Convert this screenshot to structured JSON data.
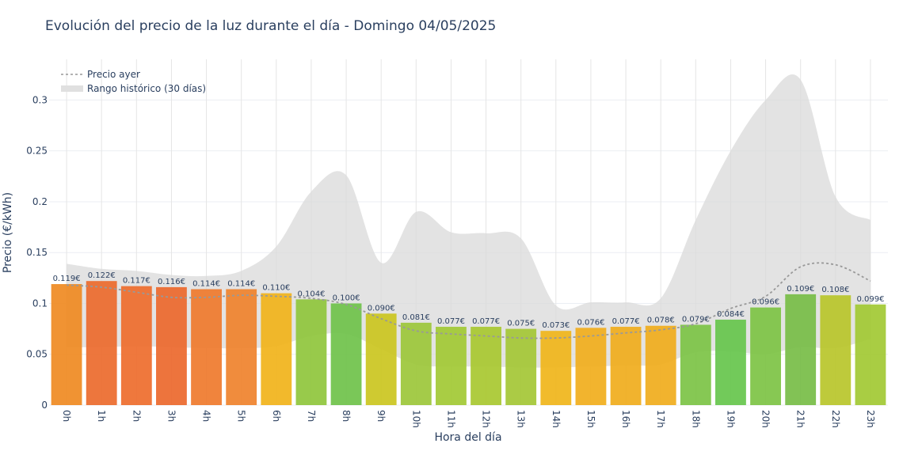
{
  "chart_data": {
    "type": "bar",
    "title": "Evolución del precio de la luz durante el día - Domingo 04/05/2025",
    "xlabel": "Hora del día",
    "ylabel": "Precio (€/kWh)",
    "ylim": [
      0,
      0.34
    ],
    "yticks": [
      0,
      0.05,
      0.1,
      0.15,
      0.2,
      0.25,
      0.3
    ],
    "ytick_labels": [
      "0",
      "0.05",
      "0.1",
      "0.15",
      "0.2",
      "0.25",
      "0.3"
    ],
    "grid": true,
    "legend_position": "top-left",
    "categories": [
      "0h",
      "1h",
      "2h",
      "3h",
      "4h",
      "5h",
      "6h",
      "7h",
      "8h",
      "9h",
      "10h",
      "11h",
      "12h",
      "13h",
      "14h",
      "15h",
      "16h",
      "17h",
      "18h",
      "19h",
      "20h",
      "21h",
      "22h",
      "23h"
    ],
    "series": [
      {
        "kind": "bar",
        "values": [
          0.119,
          0.122,
          0.117,
          0.116,
          0.114,
          0.114,
          0.11,
          0.104,
          0.1,
          0.09,
          0.081,
          0.077,
          0.077,
          0.075,
          0.073,
          0.076,
          0.077,
          0.078,
          0.079,
          0.084,
          0.096,
          0.109,
          0.108,
          0.099
        ],
        "labels": [
          "0.119€",
          "0.122€",
          "0.117€",
          "0.116€",
          "0.114€",
          "0.114€",
          "0.110€",
          "0.104€",
          "0.100€",
          "0.090€",
          "0.081€",
          "0.077€",
          "0.077€",
          "0.075€",
          "0.073€",
          "0.076€",
          "0.077€",
          "0.078€",
          "0.079€",
          "0.084€",
          "0.096€",
          "0.109€",
          "0.108€",
          "0.099€"
        ],
        "colors": [
          "#ef8a22",
          "#ec6a2c",
          "#ee6d2c",
          "#ec682c",
          "#ef7a2d",
          "#ef822c",
          "#f1b31a",
          "#8fc53c",
          "#6fc24a",
          "#cbc51f",
          "#9cc73a",
          "#a2c934",
          "#a8c830",
          "#a4c735",
          "#f0b51a",
          "#f1ae1c",
          "#f0ad1c",
          "#f0ad1c",
          "#7cc345",
          "#66c64c",
          "#7dc344",
          "#77bd47",
          "#b8c52a",
          "#a2c933"
        ]
      },
      {
        "name": "Precio ayer",
        "kind": "line",
        "color": "#999999",
        "values": [
          0.118,
          0.116,
          0.111,
          0.106,
          0.106,
          0.108,
          0.107,
          0.105,
          0.099,
          0.085,
          0.073,
          0.07,
          0.068,
          0.066,
          0.066,
          0.068,
          0.071,
          0.074,
          0.08,
          0.095,
          0.107,
          0.136,
          0.138,
          0.122
        ]
      },
      {
        "name": "Rango histórico (30 días)",
        "kind": "band",
        "color": "#d9d9d9",
        "upper": [
          0.139,
          0.134,
          0.132,
          0.128,
          0.127,
          0.132,
          0.156,
          0.21,
          0.226,
          0.14,
          0.19,
          0.17,
          0.169,
          0.164,
          0.098,
          0.101,
          0.101,
          0.105,
          0.182,
          0.25,
          0.3,
          0.32,
          0.205,
          0.182
        ],
        "lower": [
          0.057,
          0.057,
          0.058,
          0.057,
          0.056,
          0.056,
          0.058,
          0.068,
          0.07,
          0.055,
          0.04,
          0.038,
          0.038,
          0.037,
          0.037,
          0.038,
          0.039,
          0.04,
          0.052,
          0.053,
          0.05,
          0.057,
          0.056,
          0.065
        ]
      }
    ]
  }
}
